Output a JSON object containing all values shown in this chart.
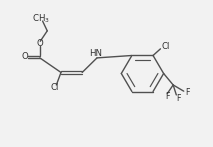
{
  "bg_color": "#f2f2f2",
  "line_color": "#505050",
  "text_color": "#303030",
  "line_width": 1.0,
  "font_size": 6.2,
  "fig_width": 2.13,
  "fig_height": 1.47,
  "dpi": 100,
  "xlim": [
    0,
    10
  ],
  "ylim": [
    0,
    7
  ]
}
